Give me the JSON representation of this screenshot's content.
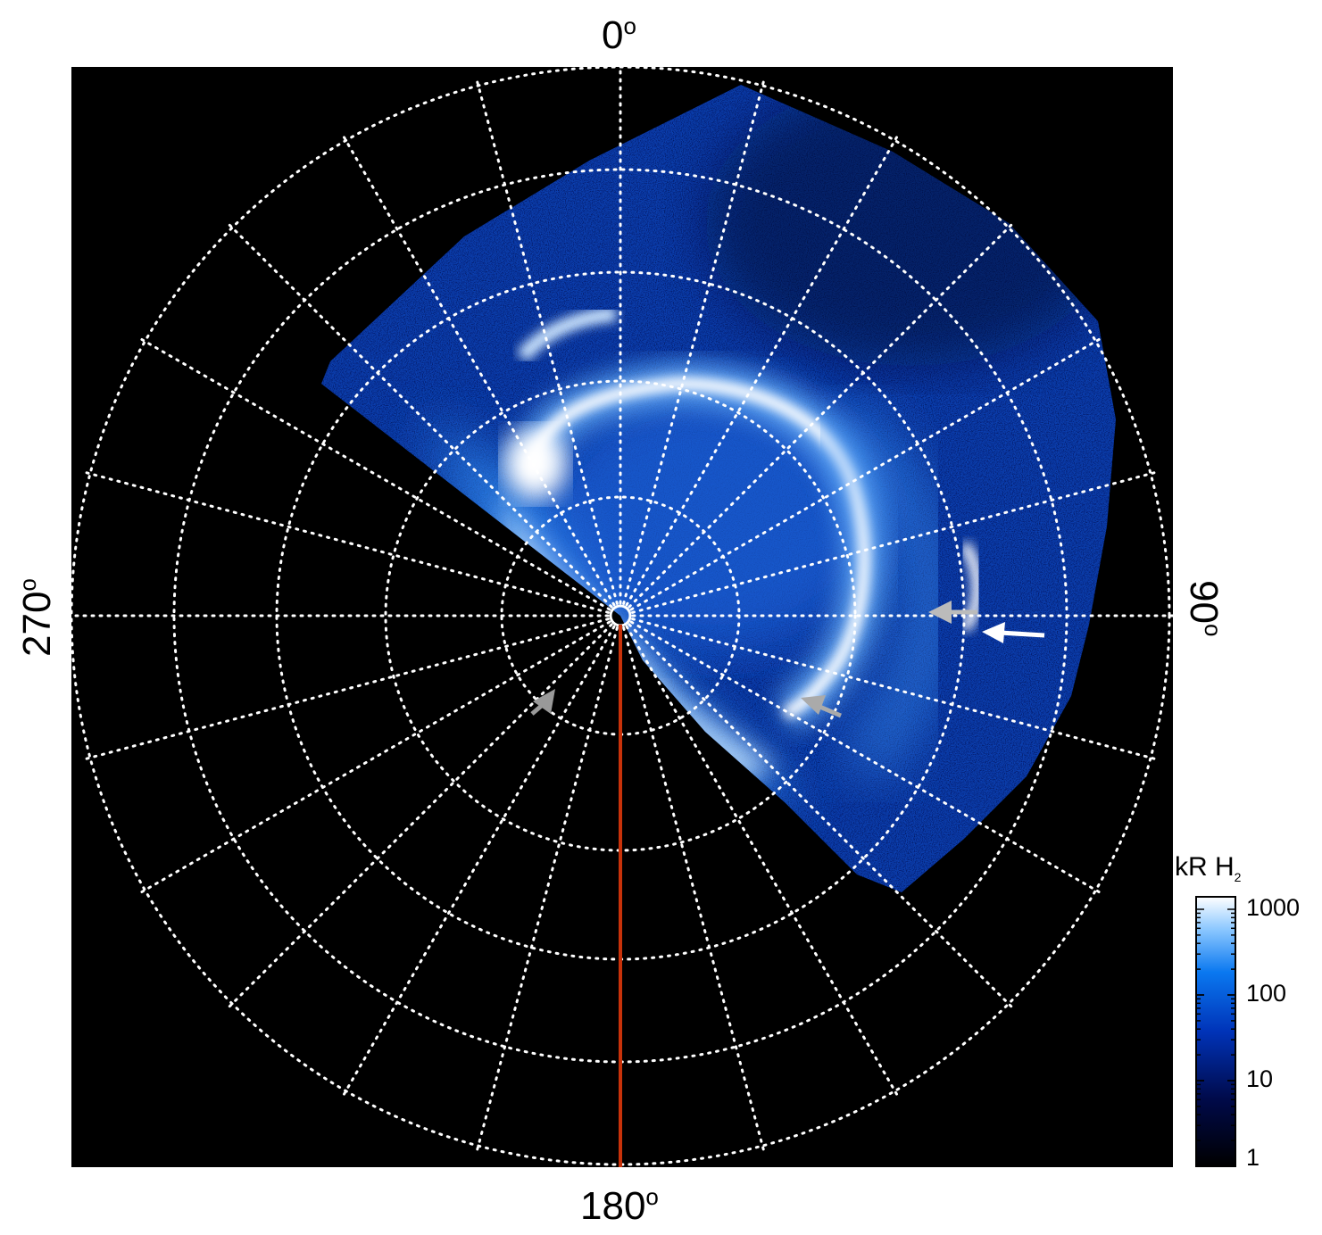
{
  "polar_labels": {
    "top": "0",
    "right": "90",
    "bottom": "180",
    "left": "270",
    "degree_symbol": "o"
  },
  "colorbar": {
    "title_main": "kR H",
    "title_sub": "2",
    "ticks": [
      "1000",
      "100",
      "10",
      "1"
    ],
    "scale": "log",
    "range": [
      1,
      1500
    ],
    "colors": [
      "#000000",
      "#000a4a",
      "#0033b8",
      "#0a78f0",
      "#8cc8ff",
      "#ffffff"
    ]
  },
  "colors": {
    "background": "#000000",
    "grid": "#ffffff",
    "meridian_line": "#c8320a",
    "arrow_white": "#ffffff",
    "arrow_gray": "#aaaaaa"
  }
}
